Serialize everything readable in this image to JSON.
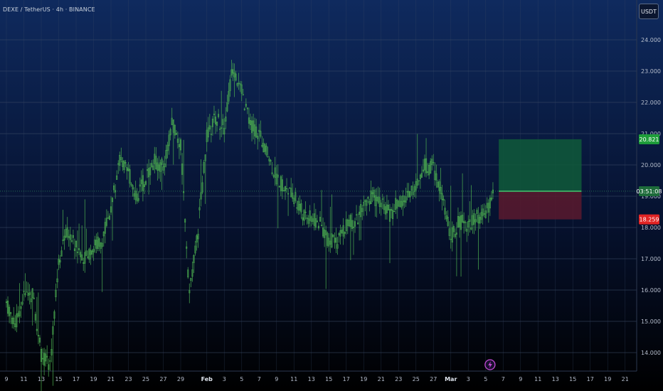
{
  "header": {
    "symbol_title": "DEXE / TetherUS · 4h · BINANCE",
    "currency_button": "USDT"
  },
  "colors": {
    "bg_top": "#0f2a5e",
    "bg_bottom": "#000000",
    "grid": "#3a4a66",
    "candle": "#4caf50",
    "target_fill": "#0f5a3a",
    "stop_fill": "#5a1a2e",
    "target_label": "#1e9e3a",
    "stop_label": "#e02424",
    "current_label": "#1d6b3a",
    "flash_icon": "#c44bd6"
  },
  "chart_data": {
    "type": "candlestick",
    "title": "DEXE / TetherUS · 4h · BINANCE",
    "y_ticks": [
      "24.000",
      "23.000",
      "22.000",
      "21.000",
      "20.000",
      "19.000",
      "18.000",
      "17.000",
      "16.000",
      "15.000",
      "14.000"
    ],
    "ylim": [
      13.3,
      25.2
    ],
    "x_ticks": [
      {
        "label": "9",
        "day": 0
      },
      {
        "label": "11",
        "day": 2
      },
      {
        "label": "13",
        "day": 4
      },
      {
        "label": "15",
        "day": 6
      },
      {
        "label": "17",
        "day": 8
      },
      {
        "label": "19",
        "day": 10
      },
      {
        "label": "21",
        "day": 12
      },
      {
        "label": "23",
        "day": 14
      },
      {
        "label": "25",
        "day": 16
      },
      {
        "label": "27",
        "day": 18
      },
      {
        "label": "29",
        "day": 20
      },
      {
        "label": "Feb",
        "day": 23,
        "bold": true
      },
      {
        "label": "3",
        "day": 25
      },
      {
        "label": "5",
        "day": 27
      },
      {
        "label": "7",
        "day": 29
      },
      {
        "label": "9",
        "day": 31
      },
      {
        "label": "11",
        "day": 33
      },
      {
        "label": "13",
        "day": 35
      },
      {
        "label": "15",
        "day": 37
      },
      {
        "label": "17",
        "day": 39
      },
      {
        "label": "19",
        "day": 41
      },
      {
        "label": "21",
        "day": 43
      },
      {
        "label": "23",
        "day": 45
      },
      {
        "label": "25",
        "day": 47
      },
      {
        "label": "27",
        "day": 49
      },
      {
        "label": "Mar",
        "day": 51,
        "bold": true
      },
      {
        "label": "3",
        "day": 53
      },
      {
        "label": "5",
        "day": 55
      },
      {
        "label": "7",
        "day": 57
      },
      {
        "label": "9",
        "day": 59
      },
      {
        "label": "11",
        "day": 61
      },
      {
        "label": "13",
        "day": 63
      },
      {
        "label": "15",
        "day": 65
      },
      {
        "label": "17",
        "day": 67
      },
      {
        "label": "19",
        "day": 69
      },
      {
        "label": "21",
        "day": 71
      }
    ],
    "daily_close_path": [
      [
        0,
        15.6
      ],
      [
        1,
        14.9
      ],
      [
        2,
        15.8
      ],
      [
        3,
        15.9
      ],
      [
        4,
        13.9
      ],
      [
        5,
        13.6
      ],
      [
        6,
        17.0
      ],
      [
        7,
        17.9
      ],
      [
        8,
        17.4
      ],
      [
        9,
        17.0
      ],
      [
        10,
        17.4
      ],
      [
        11,
        17.6
      ],
      [
        12,
        18.6
      ],
      [
        13,
        20.2
      ],
      [
        14,
        19.7
      ],
      [
        15,
        19.0
      ],
      [
        16,
        19.6
      ],
      [
        17,
        20.1
      ],
      [
        18,
        19.9
      ],
      [
        19,
        21.3
      ],
      [
        20,
        20.6
      ],
      [
        21,
        15.9
      ],
      [
        22,
        17.9
      ],
      [
        23,
        20.9
      ],
      [
        24,
        21.5
      ],
      [
        25,
        21.2
      ],
      [
        26,
        23.2
      ],
      [
        27,
        22.3
      ],
      [
        28,
        21.3
      ],
      [
        29,
        21.0
      ],
      [
        30,
        20.3
      ],
      [
        31,
        19.6
      ],
      [
        32,
        19.2
      ],
      [
        33,
        19.0
      ],
      [
        34,
        18.4
      ],
      [
        35,
        18.3
      ],
      [
        36,
        18.1
      ],
      [
        37,
        17.6
      ],
      [
        38,
        17.5
      ],
      [
        39,
        18.1
      ],
      [
        40,
        18.2
      ],
      [
        41,
        18.6
      ],
      [
        42,
        19.0
      ],
      [
        43,
        18.8
      ],
      [
        44,
        18.4
      ],
      [
        45,
        18.8
      ],
      [
        46,
        19.0
      ],
      [
        47,
        19.4
      ],
      [
        48,
        20.0
      ],
      [
        49,
        19.9
      ],
      [
        50,
        19.0
      ],
      [
        51,
        17.7
      ],
      [
        52,
        18.2
      ],
      [
        53,
        18.1
      ],
      [
        54,
        18.3
      ],
      [
        55,
        18.4
      ],
      [
        56,
        19.3
      ]
    ],
    "position": {
      "entry": 19.16,
      "target": 20.821,
      "stop": 18.259,
      "start_day": 56.5,
      "end_day": 66.0
    },
    "price_labels": {
      "target": "20.821",
      "current": "03:51:08",
      "stop": "18.259"
    },
    "current_price": 19.16,
    "flash_event_day": 55.5
  }
}
